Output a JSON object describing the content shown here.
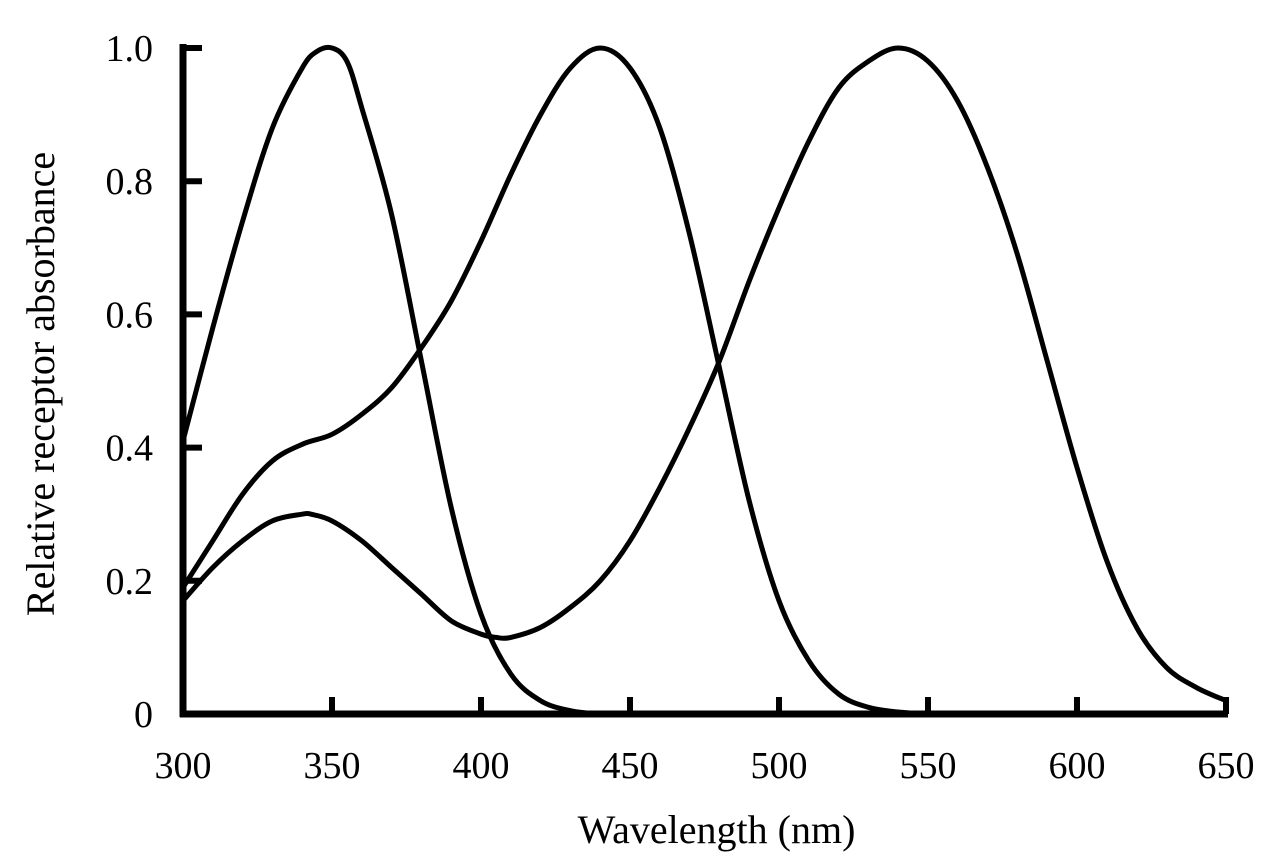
{
  "chart_data": {
    "type": "line",
    "title": "",
    "xlabel": "Wavelength (nm)",
    "ylabel": "Relative receptor absorbance",
    "xlim": [
      300,
      650
    ],
    "ylim": [
      0,
      1.0
    ],
    "x_ticks": [
      300,
      350,
      400,
      450,
      500,
      550,
      600,
      650
    ],
    "x_tick_labels": [
      "300",
      "350",
      "400",
      "450",
      "500",
      "550",
      "600",
      "650"
    ],
    "y_ticks": [
      0,
      0.2,
      0.4,
      0.6,
      0.8,
      1.0
    ],
    "y_tick_labels": [
      "0",
      "0.2",
      "0.4",
      "0.6",
      "0.8",
      "1.0"
    ],
    "grid": false,
    "legend": "none",
    "line_color": "#000000",
    "series": [
      {
        "x": [
          300,
          310,
          320,
          330,
          340,
          345,
          350,
          355,
          360,
          370,
          380,
          390,
          400,
          410,
          420,
          430,
          440,
          450
        ],
        "y": [
          0.41,
          0.58,
          0.74,
          0.88,
          0.97,
          0.995,
          1.0,
          0.98,
          0.91,
          0.75,
          0.53,
          0.31,
          0.15,
          0.06,
          0.02,
          0.005,
          0.0,
          0.0
        ]
      },
      {
        "x": [
          300,
          310,
          320,
          330,
          340,
          350,
          360,
          370,
          380,
          390,
          400,
          410,
          420,
          430,
          440,
          450,
          460,
          470,
          480,
          490,
          500,
          510,
          520,
          530,
          540,
          550
        ],
        "y": [
          0.19,
          0.26,
          0.33,
          0.38,
          0.405,
          0.42,
          0.45,
          0.49,
          0.55,
          0.62,
          0.71,
          0.81,
          0.9,
          0.97,
          1.0,
          0.97,
          0.88,
          0.72,
          0.52,
          0.32,
          0.17,
          0.08,
          0.03,
          0.01,
          0.003,
          0.0
        ]
      },
      {
        "x": [
          300,
          310,
          320,
          330,
          340,
          343,
          350,
          360,
          370,
          380,
          390,
          400,
          405,
          410,
          420,
          430,
          440,
          450,
          460,
          470,
          480,
          490,
          500,
          510,
          520,
          530,
          540,
          550,
          560,
          570,
          580,
          590,
          600,
          610,
          620,
          630,
          640,
          650
        ],
        "y": [
          0.17,
          0.22,
          0.26,
          0.29,
          0.3,
          0.3,
          0.29,
          0.26,
          0.22,
          0.18,
          0.14,
          0.12,
          0.115,
          0.115,
          0.13,
          0.16,
          0.2,
          0.26,
          0.34,
          0.43,
          0.53,
          0.65,
          0.76,
          0.86,
          0.94,
          0.98,
          1.0,
          0.98,
          0.92,
          0.82,
          0.69,
          0.53,
          0.37,
          0.23,
          0.13,
          0.07,
          0.04,
          0.02
        ]
      }
    ]
  }
}
